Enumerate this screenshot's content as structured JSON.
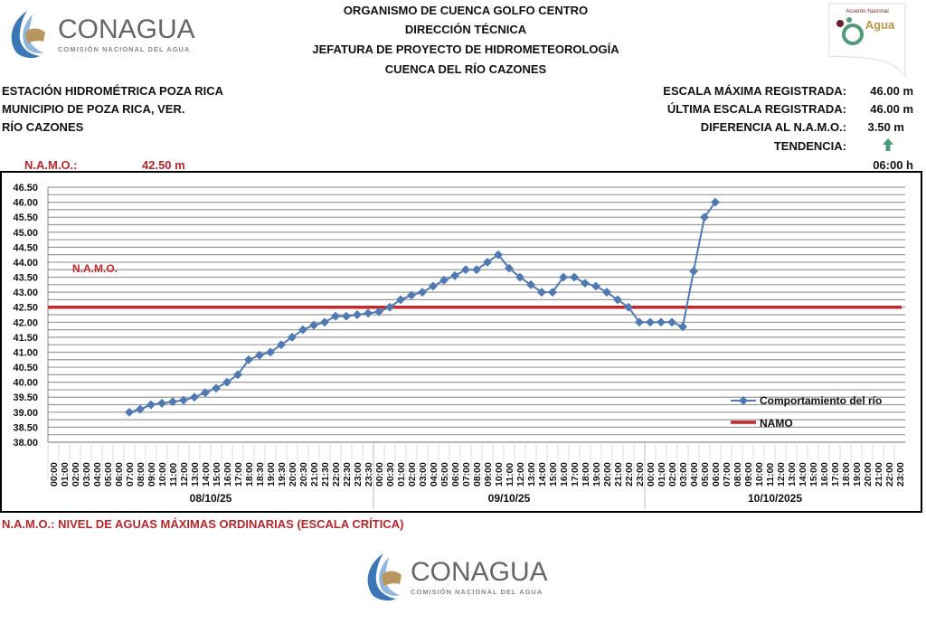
{
  "header": {
    "logo_text": "CONAGUA",
    "logo_subtext": "COMISIÓN NACIONAL DEL AGUA",
    "right_logo_text": "Acuerdo Nacional",
    "right_logo_word": "Agua",
    "title_lines": [
      "ORGANISMO DE CUENCA GOLFO CENTRO",
      "DIRECCIÓN TÉCNICA",
      "JEFATURA DE PROYECTO DE HIDROMETEOROLOGÍA",
      "CUENCA DEL RÍO CAZONES"
    ]
  },
  "station": {
    "name": "ESTACIÓN HIDROMÉTRICA POZA RICA",
    "municipality": "MUNICIPIO DE POZA RICA, VER.",
    "river": "RÍO CAZONES",
    "namo_label": "N.A.M.O.:",
    "namo_value": "42.50 m"
  },
  "stats": {
    "max_label": "ESCALA MÁXIMA REGISTRADA:",
    "max_value": "46.00 m",
    "last_label": "ÚLTIMA ESCALA REGISTRADA:",
    "last_value": "46.00 m",
    "diff_label": "DIFERENCIA AL N.A.M.O.:",
    "diff_value": "3.50 m",
    "trend_label": "TENDENCIA:",
    "trend_icon": "arrow-up-icon",
    "trend_color": "#4e9a7a",
    "time": "06:00 h"
  },
  "footer": {
    "note": "N.A.M.O.: NIVEL DE AGUAS MÁXIMAS ORDINARIAS (ESCALA CRÍTICA)",
    "logo_text": "CONAGUA",
    "logo_subtext": "COMISIÓN NACIONAL DEL AGUA"
  },
  "chart_data": {
    "type": "line",
    "title": "",
    "xlabel": "",
    "ylabel": "",
    "ylim": [
      38.0,
      46.5
    ],
    "ytick_step": 0.5,
    "grid_step": 0.25,
    "grid": true,
    "legend_position": "bottom-right",
    "annotation": "N.A.M.O.",
    "colors": {
      "river": "#4f79b0",
      "namo": "#c0282d"
    },
    "x_labels": [
      "00:00",
      "01:00",
      "02:00",
      "03:00",
      "04:00",
      "05:00",
      "06:00",
      "07:00",
      "08:00",
      "09:00",
      "10:00",
      "11:00",
      "12:00",
      "13:00",
      "14:00",
      "15:00",
      "16:00",
      "17:00",
      "18:00",
      "18:30",
      "19:00",
      "19:30",
      "20:00",
      "20:30",
      "21:00",
      "21:30",
      "22:00",
      "22:30",
      "23:00",
      "23:30",
      "00:00",
      "00:30",
      "01:00",
      "02:00",
      "03:00",
      "04:00",
      "05:00",
      "06:00",
      "07:00",
      "08:00",
      "09:00",
      "10:00",
      "11:00",
      "12:00",
      "13:00",
      "14:00",
      "15:00",
      "16:00",
      "17:00",
      "18:00",
      "19:00",
      "20:00",
      "21:00",
      "22:00",
      "23:00",
      "00:00",
      "01:00",
      "02:00",
      "03:00",
      "04:00",
      "05:00",
      "06:00",
      "07:00",
      "08:00",
      "09:00",
      "10:00",
      "11:00",
      "12:00",
      "13:00",
      "14:00",
      "15:00",
      "16:00",
      "17:00",
      "18:00",
      "19:00",
      "20:00",
      "21:00",
      "22:00",
      "23:00"
    ],
    "day_groups": [
      {
        "label": "08/10/25",
        "count": 30
      },
      {
        "label": "09/10/25",
        "count": 25
      },
      {
        "label": "10/10/2025",
        "count": 24
      }
    ],
    "series": [
      {
        "name": "Comportamiento del río",
        "start_index": 7,
        "values": [
          39.0,
          39.1,
          39.25,
          39.3,
          39.35,
          39.4,
          39.5,
          39.65,
          39.8,
          40.0,
          40.25,
          40.75,
          40.9,
          41.0,
          41.25,
          41.5,
          41.75,
          41.9,
          42.0,
          42.2,
          42.2,
          42.25,
          42.3,
          42.35,
          42.5,
          42.75,
          42.9,
          43.0,
          43.2,
          43.4,
          43.55,
          43.75,
          43.75,
          44.0,
          44.25,
          43.8,
          43.5,
          43.25,
          43.0,
          43.0,
          43.5,
          43.5,
          43.3,
          43.2,
          43.0,
          42.75,
          42.5,
          42.0,
          42.0,
          42.0,
          42.0,
          41.85,
          43.7,
          45.5,
          46.0
        ]
      },
      {
        "name": "NAMO",
        "constant": 42.5
      }
    ]
  }
}
